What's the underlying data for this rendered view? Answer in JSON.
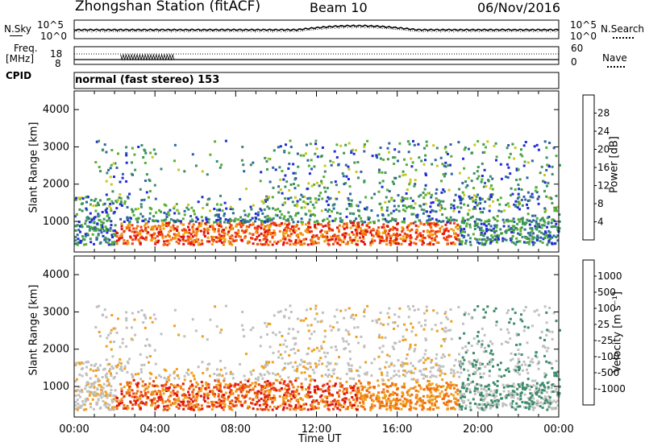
{
  "header": {
    "station": "Zhongshan Station (fitACF)",
    "beam": "Beam 10",
    "date": "06/Nov/2016"
  },
  "top_panels": {
    "nsky_label": "N.Sky",
    "nsearch_label": "N.Search",
    "noise_ticks": [
      "10^5",
      "10^0"
    ],
    "noise_ticks_right": [
      "10^5",
      "10^0"
    ],
    "freq_label_line1": "Freq.",
    "freq_label_line2": "[MHz]",
    "freq_ticks": [
      "18",
      "8"
    ],
    "nave_label": "Nave",
    "nave_ticks": [
      "60",
      "0"
    ],
    "cpid_label": "CPID",
    "cpid_text": "normal (fast stereo) 153"
  },
  "x_axis": {
    "label": "Time UT",
    "ticks": [
      "00:00",
      "04:00",
      "08:00",
      "12:00",
      "16:00",
      "20:00",
      "00:00"
    ]
  },
  "chart_data": [
    {
      "type": "heatmap",
      "name": "power",
      "ylabel": "Slant Range [km]",
      "yticks": [
        "4000",
        "3000",
        "2000",
        "1000"
      ],
      "ylim": [
        180,
        4500
      ],
      "xlim_hours": [
        0,
        24
      ],
      "colorbar": {
        "label": "Power [dB]",
        "ticks": [
          "28",
          "24",
          "20",
          "16",
          "12",
          "8",
          "4"
        ],
        "range": [
          0,
          32
        ],
        "colors": [
          "#1f2cd6",
          "#2f63a6",
          "#3d8c6b",
          "#3e9a50",
          "#58b032",
          "#c8c820",
          "#f0a010",
          "#f07010",
          "#f03a10",
          "#e01010"
        ]
      }
    },
    {
      "type": "heatmap",
      "name": "velocity",
      "ylabel": "Slant Range [km]",
      "yticks": [
        "4000",
        "3000",
        "2000",
        "1000"
      ],
      "ylim": [
        180,
        4500
      ],
      "xlim_hours": [
        0,
        24
      ],
      "colorbar": {
        "label": "Velocity [m s⁻¹]",
        "ticks": [
          "1000",
          "500",
          "100",
          "25",
          "-25",
          "-100",
          "-500",
          "-1000"
        ],
        "colors": [
          "#2040b0",
          "#2f6fb0",
          "#3d8c6b",
          "#55b040",
          "#c0c0c0",
          "#f0a020",
          "#f07010",
          "#e84010",
          "#e01010"
        ]
      }
    }
  ]
}
